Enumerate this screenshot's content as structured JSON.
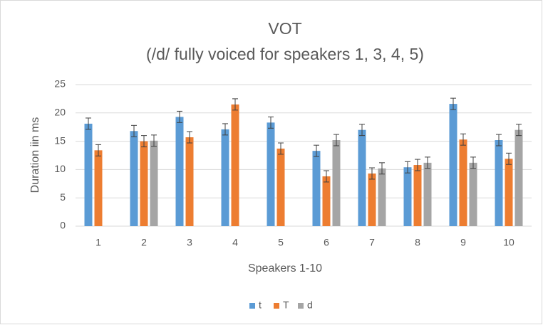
{
  "chart_data": {
    "type": "bar",
    "title": "VOT",
    "subtitle": "(/d/ fully voiced for speakers 1, 3, 4, 5)",
    "x_label": "Speakers 1-10",
    "y_label": "Duration iin ms",
    "categories": [
      "1",
      "2",
      "3",
      "4",
      "5",
      "6",
      "7",
      "8",
      "9",
      "10"
    ],
    "series": [
      {
        "name": "t",
        "color": "#5b9bd5",
        "values": [
          18.1,
          16.8,
          19.3,
          17.1,
          18.3,
          13.3,
          17.0,
          10.4,
          21.6,
          15.2
        ],
        "errors": [
          1,
          1,
          1,
          1,
          1,
          1,
          1,
          1,
          1,
          1
        ]
      },
      {
        "name": "T",
        "color": "#ed7d31",
        "values": [
          13.4,
          15.0,
          15.7,
          21.5,
          13.7,
          8.8,
          9.3,
          10.8,
          15.3,
          11.9
        ],
        "errors": [
          1,
          1,
          1,
          1,
          1,
          1,
          1,
          1,
          1,
          1
        ]
      },
      {
        "name": "d",
        "color": "#a5a5a5",
        "values": [
          null,
          15.1,
          null,
          null,
          null,
          15.2,
          10.2,
          11.2,
          11.2,
          17.0
        ],
        "errors": [
          null,
          1,
          null,
          null,
          null,
          1,
          1,
          1,
          1,
          1
        ]
      }
    ],
    "ylim": [
      0,
      25
    ],
    "yticks": [
      0,
      5,
      10,
      15,
      20,
      25
    ],
    "grid": true,
    "legend": "bottom"
  }
}
